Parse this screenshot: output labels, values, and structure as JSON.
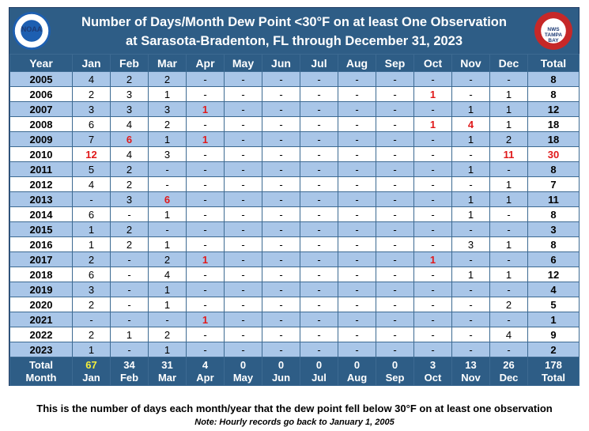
{
  "title": {
    "line1": "Number of Days/Month Dew Point <30°F on at least One Observation",
    "line2": "at Sarasota-Bradenton, FL through December 31, 2023"
  },
  "logos": {
    "left": "NOAA",
    "right": "NATIONAL WEATHER SERVICE TAMPA BAY"
  },
  "headers": [
    "Year",
    "Jan",
    "Feb",
    "Mar",
    "Apr",
    "May",
    "Jun",
    "Jul",
    "Aug",
    "Sep",
    "Oct",
    "Nov",
    "Dec",
    "Total"
  ],
  "rows": [
    {
      "year": "2005",
      "cells": [
        "4",
        "2",
        "2",
        "-",
        "-",
        "-",
        "-",
        "-",
        "-",
        "-",
        "-",
        "-"
      ],
      "total": "8",
      "red": []
    },
    {
      "year": "2006",
      "cells": [
        "2",
        "3",
        "1",
        "-",
        "-",
        "-",
        "-",
        "-",
        "-",
        "1",
        "-",
        "1"
      ],
      "total": "8",
      "red": [
        9
      ]
    },
    {
      "year": "2007",
      "cells": [
        "3",
        "3",
        "3",
        "1",
        "-",
        "-",
        "-",
        "-",
        "-",
        "-",
        "1",
        "1"
      ],
      "total": "12",
      "red": [
        3
      ]
    },
    {
      "year": "2008",
      "cells": [
        "6",
        "4",
        "2",
        "-",
        "-",
        "-",
        "-",
        "-",
        "-",
        "1",
        "4",
        "1"
      ],
      "total": "18",
      "red": [
        9,
        10
      ]
    },
    {
      "year": "2009",
      "cells": [
        "7",
        "6",
        "1",
        "1",
        "-",
        "-",
        "-",
        "-",
        "-",
        "-",
        "1",
        "2"
      ],
      "total": "18",
      "red": [
        1,
        3
      ]
    },
    {
      "year": "2010",
      "cells": [
        "12",
        "4",
        "3",
        "-",
        "-",
        "-",
        "-",
        "-",
        "-",
        "-",
        "-",
        "11"
      ],
      "total": "30",
      "red": [
        0,
        11,
        12
      ]
    },
    {
      "year": "2011",
      "cells": [
        "5",
        "2",
        "-",
        "-",
        "-",
        "-",
        "-",
        "-",
        "-",
        "-",
        "1",
        "-"
      ],
      "total": "8",
      "red": []
    },
    {
      "year": "2012",
      "cells": [
        "4",
        "2",
        "-",
        "-",
        "-",
        "-",
        "-",
        "-",
        "-",
        "-",
        "-",
        "1"
      ],
      "total": "7",
      "red": []
    },
    {
      "year": "2013",
      "cells": [
        "-",
        "3",
        "6",
        "-",
        "-",
        "-",
        "-",
        "-",
        "-",
        "-",
        "1",
        "1"
      ],
      "total": "11",
      "red": [
        2
      ]
    },
    {
      "year": "2014",
      "cells": [
        "6",
        "-",
        "1",
        "-",
        "-",
        "-",
        "-",
        "-",
        "-",
        "-",
        "1",
        "-"
      ],
      "total": "8",
      "red": []
    },
    {
      "year": "2015",
      "cells": [
        "1",
        "2",
        "-",
        "-",
        "-",
        "-",
        "-",
        "-",
        "-",
        "-",
        "-",
        "-"
      ],
      "total": "3",
      "red": []
    },
    {
      "year": "2016",
      "cells": [
        "1",
        "2",
        "1",
        "-",
        "-",
        "-",
        "-",
        "-",
        "-",
        "-",
        "3",
        "1"
      ],
      "total": "8",
      "red": []
    },
    {
      "year": "2017",
      "cells": [
        "2",
        "-",
        "2",
        "1",
        "-",
        "-",
        "-",
        "-",
        "-",
        "1",
        "-",
        "-"
      ],
      "total": "6",
      "red": [
        3,
        9
      ]
    },
    {
      "year": "2018",
      "cells": [
        "6",
        "-",
        "4",
        "-",
        "-",
        "-",
        "-",
        "-",
        "-",
        "-",
        "1",
        "1"
      ],
      "total": "12",
      "red": []
    },
    {
      "year": "2019",
      "cells": [
        "3",
        "-",
        "1",
        "-",
        "-",
        "-",
        "-",
        "-",
        "-",
        "-",
        "-",
        "-"
      ],
      "total": "4",
      "red": []
    },
    {
      "year": "2020",
      "cells": [
        "2",
        "-",
        "1",
        "-",
        "-",
        "-",
        "-",
        "-",
        "-",
        "-",
        "-",
        "2"
      ],
      "total": "5",
      "red": []
    },
    {
      "year": "2021",
      "cells": [
        "-",
        "-",
        "-",
        "1",
        "-",
        "-",
        "-",
        "-",
        "-",
        "-",
        "-",
        "-"
      ],
      "total": "1",
      "red": [
        3
      ]
    },
    {
      "year": "2022",
      "cells": [
        "2",
        "1",
        "2",
        "-",
        "-",
        "-",
        "-",
        "-",
        "-",
        "-",
        "-",
        "4"
      ],
      "total": "9",
      "red": []
    },
    {
      "year": "2023",
      "cells": [
        "1",
        "-",
        "1",
        "-",
        "-",
        "-",
        "-",
        "-",
        "-",
        "-",
        "-",
        "-"
      ],
      "total": "2",
      "red": []
    }
  ],
  "totals": {
    "label": [
      "Total",
      "Month"
    ],
    "cells": [
      [
        "67",
        "Jan"
      ],
      [
        "34",
        "Feb"
      ],
      [
        "31",
        "Mar"
      ],
      [
        "4",
        "Apr"
      ],
      [
        "0",
        "May"
      ],
      [
        "0",
        "Jun"
      ],
      [
        "0",
        "Jul"
      ],
      [
        "0",
        "Aug"
      ],
      [
        "0",
        "Sep"
      ],
      [
        "3",
        "Oct"
      ],
      [
        "13",
        "Nov"
      ],
      [
        "26",
        "Dec"
      ],
      [
        "178",
        "Total"
      ]
    ],
    "highlight_index": 0
  },
  "footer": {
    "line1": "This is the number of days each month/year that the dew point fell below 30°F on at least one observation",
    "line2": "Note: Hourly records go back to January 1, 2005"
  },
  "colors": {
    "header_bg": "#2e5d86",
    "band_blue": "#a9c6e8",
    "red": "#e0191a",
    "yellow": "#f5ee3b"
  }
}
